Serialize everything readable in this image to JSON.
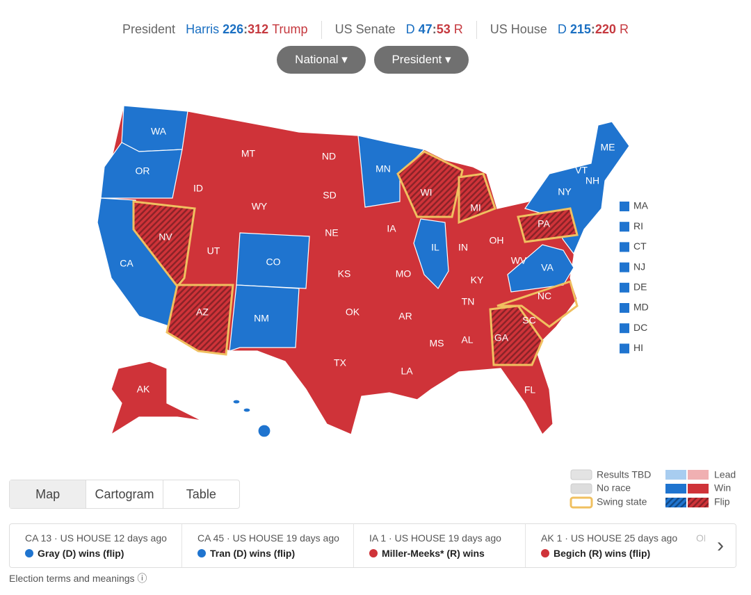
{
  "header": {
    "president": {
      "label": "President",
      "d_name": "Harris",
      "d_votes": 226,
      "separator": ":",
      "r_votes": 312,
      "r_name": "Trump"
    },
    "senate": {
      "label": "US Senate",
      "d": "D",
      "d_seats": 47,
      "r_seats": 53,
      "r": "R"
    },
    "house": {
      "label": "US House",
      "d": "D",
      "d_seats": 215,
      "r_seats": 220,
      "r": "R"
    }
  },
  "dropdowns": [
    "National",
    "President"
  ],
  "map": {
    "states": [
      "WA",
      "OR",
      "CA",
      "NV",
      "ID",
      "MT",
      "WY",
      "UT",
      "CO",
      "AZ",
      "NM",
      "ND",
      "SD",
      "NE",
      "KS",
      "OK",
      "TX",
      "MN",
      "IA",
      "MO",
      "AR",
      "LA",
      "WI",
      "IL",
      "MI",
      "IN",
      "OH",
      "KY",
      "TN",
      "MS",
      "AL",
      "GA",
      "FL",
      "SC",
      "NC",
      "VA",
      "WV",
      "PA",
      "NY",
      "VT",
      "NH",
      "ME",
      "AK"
    ],
    "small_states": [
      "MA",
      "RI",
      "CT",
      "NJ",
      "DE",
      "MD",
      "DC",
      "HI"
    ]
  },
  "legend": {
    "tbd": "Results TBD",
    "no_race": "No race",
    "swing": "Swing state",
    "lead": "Lead",
    "win": "Win",
    "flip": "Flip"
  },
  "tabs": [
    "Map",
    "Cartogram",
    "Table"
  ],
  "news": {
    "separator": "·",
    "cards": [
      {
        "race": "CA 13",
        "office": "US HOUSE",
        "time": "12 days ago",
        "result": "Gray (D) wins (flip)",
        "party": "D"
      },
      {
        "race": "CA 45",
        "office": "US HOUSE",
        "time": "19 days ago",
        "result": "Tran (D) wins (flip)",
        "party": "D"
      },
      {
        "race": "IA 1",
        "office": "US HOUSE",
        "time": "19 days ago",
        "result": "Miller-Meeks* (R) wins",
        "party": "R"
      },
      {
        "race": "AK 1",
        "office": "US HOUSE",
        "time": "25 days ago",
        "result": "Begich (R) wins (flip)",
        "party": "R"
      }
    ],
    "partial": "OH"
  },
  "footer": "Election terms and meanings"
}
